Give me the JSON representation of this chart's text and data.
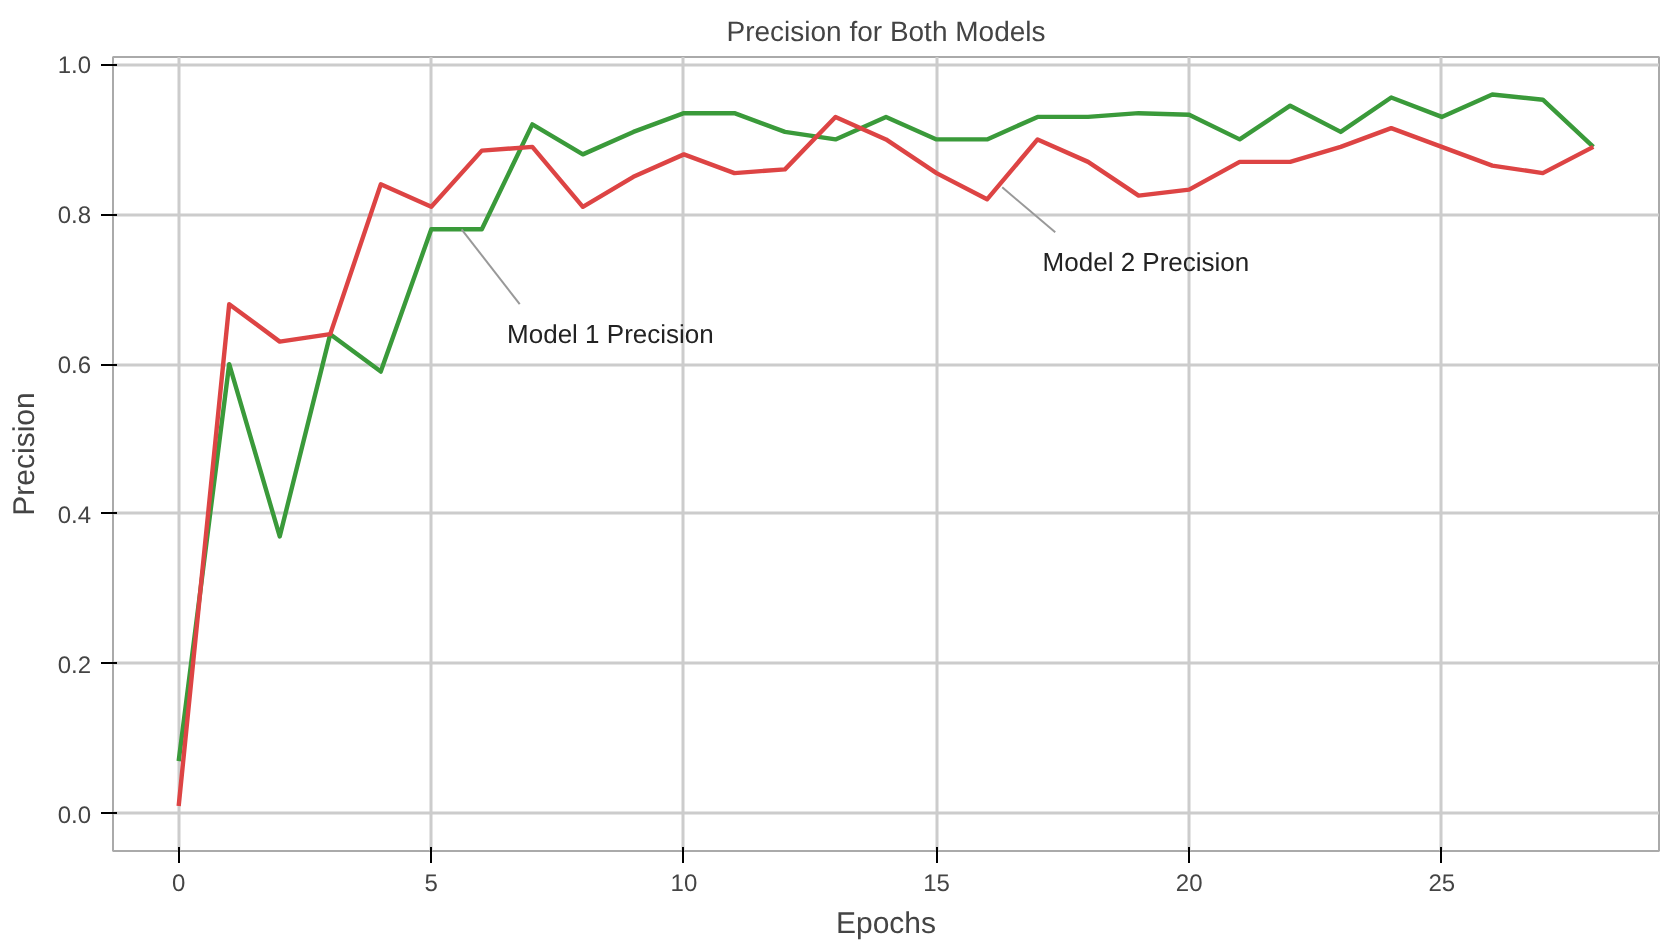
{
  "chart_data": {
    "type": "line",
    "title": "Precision for Both Models",
    "xlabel": "Epochs",
    "ylabel": "Precision",
    "x": [
      0,
      1,
      2,
      3,
      4,
      5,
      6,
      7,
      8,
      9,
      10,
      11,
      12,
      13,
      14,
      15,
      16,
      17,
      18,
      19,
      20,
      21,
      22,
      23,
      24,
      25,
      26,
      27,
      28
    ],
    "series": [
      {
        "color": "#3a9a3a",
        "values": [
          0.07,
          0.6,
          0.37,
          0.64,
          0.59,
          0.78,
          0.78,
          0.92,
          0.88,
          0.91,
          0.935,
          0.935,
          0.91,
          0.9,
          0.93,
          0.9,
          0.9,
          0.93,
          0.93,
          0.935,
          0.933,
          0.9,
          0.945,
          0.91,
          0.956,
          0.93,
          0.96,
          0.953,
          0.89
        ]
      },
      {
        "color": "#dd4444",
        "values": [
          0.01,
          0.68,
          0.63,
          0.64,
          0.84,
          0.81,
          0.885,
          0.89,
          0.81,
          0.85,
          0.88,
          0.855,
          0.86,
          0.93,
          0.9,
          0.855,
          0.82,
          0.9,
          0.87,
          0.825,
          0.833,
          0.87,
          0.87,
          0.89,
          0.915,
          0.89,
          0.865,
          0.855,
          0.89
        ]
      }
    ],
    "annotations": [
      {
        "text": "Model 1 Precision",
        "x": 5.6,
        "y": 0.78
      },
      {
        "text": "Model 2 Precision",
        "x": 16.3,
        "y": 0.836
      }
    ],
    "xlim": [
      -1.3,
      29.3
    ],
    "ylim": [
      -0.05,
      1.01
    ],
    "xticks": [
      0,
      5,
      10,
      15,
      20,
      25
    ],
    "yticks": [
      {
        "value": 0,
        "label": "0.0"
      },
      0.2,
      0.4,
      0.6,
      0.8,
      {
        "value": 1,
        "label": "1.0"
      }
    ],
    "grid": true,
    "marker": "none",
    "line_style": "solid"
  }
}
